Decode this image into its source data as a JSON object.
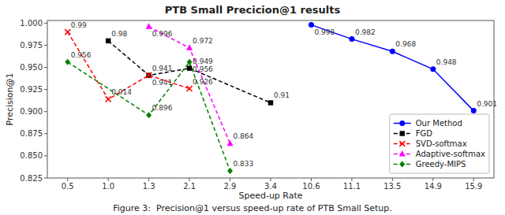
{
  "chart_data": {
    "type": "line",
    "title": "PTB Small Precicion@1 results",
    "x_label": "Speed-up Rate",
    "y_label": "Precision@1",
    "caption": "Figure 3:  Precision@1 versus speed-up rate of PTB Small Setup.",
    "categories": [
      "0.5",
      "1.0",
      "1.3",
      "2.1",
      "2.9",
      "3.4",
      "10.6",
      "11.1",
      "13.5",
      "14.9",
      "15.9"
    ],
    "series": [
      {
        "name": "Our Method",
        "color": "blue",
        "line_style": "solid",
        "marker": "circle",
        "x": [
          "10.6",
          "11.1",
          "13.5",
          "14.9",
          "15.9"
        ],
        "values": [
          0.998,
          0.982,
          0.968,
          0.948,
          0.901
        ]
      },
      {
        "name": "FGD",
        "color": "black",
        "line_style": "dashed",
        "marker": "square",
        "x": [
          "1.0",
          "1.3",
          "2.1",
          "3.4"
        ],
        "values": [
          0.98,
          0.941,
          0.949,
          0.91
        ]
      },
      {
        "name": "SVD-softmax",
        "color": "red",
        "line_style": "dashed",
        "marker": "x",
        "x": [
          "0.5",
          "1.0",
          "1.3",
          "2.1"
        ],
        "values": [
          0.99,
          0.914,
          0.941,
          0.926
        ]
      },
      {
        "name": "Adaptive-softmax",
        "color": "magenta",
        "line_style": "dashed",
        "marker": "triangle",
        "x": [
          "1.3",
          "2.1",
          "2.9"
        ],
        "values": [
          0.996,
          0.972,
          0.864
        ]
      },
      {
        "name": "Greedy-MIPS",
        "color": "green",
        "line_style": "dashed",
        "marker": "diamond",
        "x": [
          "0.5",
          "1.3",
          "2.1",
          "2.9"
        ],
        "values": [
          0.956,
          0.896,
          0.956,
          0.833
        ]
      }
    ],
    "ylim": [
      0.825,
      1.003
    ],
    "yticks": [
      0.825,
      {
        "value": 0.85,
        "label": "0.850"
      },
      0.875,
      {
        "value": 0.9,
        "label": "0.900"
      },
      0.925,
      {
        "value": 0.95,
        "label": "0.950"
      },
      0.975,
      {
        "value": 1.0,
        "label": "1.000"
      }
    ],
    "grid": false,
    "legend": "lower right",
    "data_labels": true
  }
}
